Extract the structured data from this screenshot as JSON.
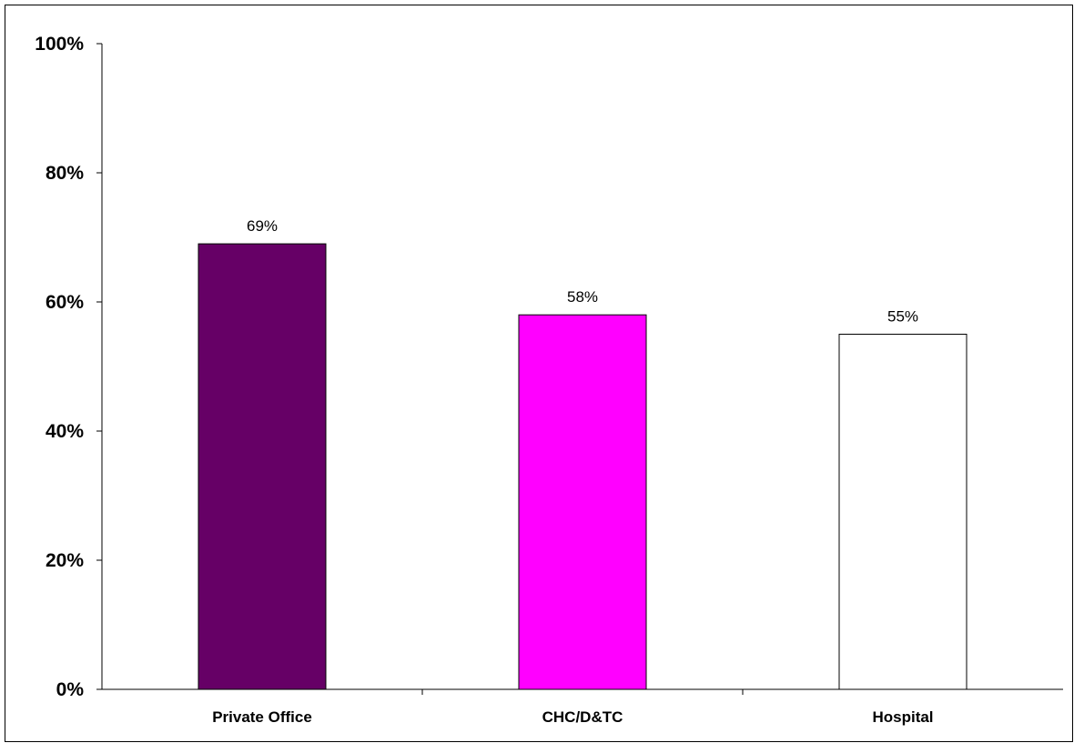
{
  "chart_data": {
    "type": "bar",
    "title": "",
    "xlabel": "",
    "ylabel": "",
    "categories": [
      "Private Office",
      "CHC/D&TC",
      "Hospital"
    ],
    "values": [
      69,
      58,
      55
    ],
    "data_labels": [
      "69%",
      "58%",
      "55%"
    ],
    "colors": [
      "#660066",
      "#ff00ff",
      "#ffffff"
    ],
    "bar_stroke": "#000000",
    "ylim": [
      0,
      100
    ],
    "yticks": [
      0,
      20,
      40,
      60,
      80,
      100
    ],
    "ytick_labels": [
      "0%",
      "20%",
      "40%",
      "60%",
      "80%",
      "100%"
    ],
    "grid": false,
    "legend": "none"
  }
}
